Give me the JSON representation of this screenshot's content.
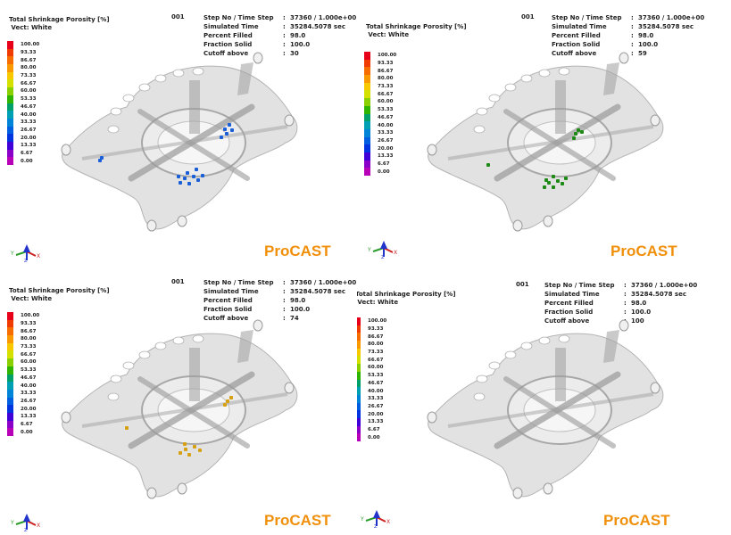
{
  "common": {
    "title": "Total Shrinkage Porosity [%]",
    "vect": "Vect: White",
    "step_id": "001",
    "brand": "ProCAST",
    "labels": {
      "step": "Step No / Time Step",
      "time": "Simulated Time",
      "filled": "Percent Filled",
      "solid": "Fraction Solid",
      "cutoff": "Cutoff above"
    },
    "values": {
      "step": "37360 / 1.000e+00",
      "time": "35284.5078 sec",
      "filled": "98.0",
      "solid": "100.0"
    },
    "axes": {
      "y": "Y",
      "z": "Z",
      "x": "X"
    }
  },
  "legend": {
    "labels": [
      "100.00",
      "93.33",
      "86.67",
      "80.00",
      "73.33",
      "66.67",
      "60.00",
      "53.33",
      "46.67",
      "40.00",
      "33.33",
      "26.67",
      "20.00",
      "13.33",
      "6.67",
      "0.00"
    ],
    "colors": [
      "#e8001a",
      "#f03c00",
      "#f76d00",
      "#fb9900",
      "#f8c800",
      "#d3e000",
      "#8ad000",
      "#2fb400",
      "#00a06a",
      "#00a0b4",
      "#0084d8",
      "#005fe0",
      "#0034e0",
      "#4000d8",
      "#8a00c8",
      "#b800b8"
    ]
  },
  "panels": [
    {
      "cutoff": "30",
      "defect_color": "#1a5fd8"
    },
    {
      "cutoff": "59",
      "defect_color": "#1e8a16"
    },
    {
      "cutoff": "74",
      "defect_color": "#d6a010"
    },
    {
      "cutoff": "100",
      "defect_color": ""
    }
  ]
}
